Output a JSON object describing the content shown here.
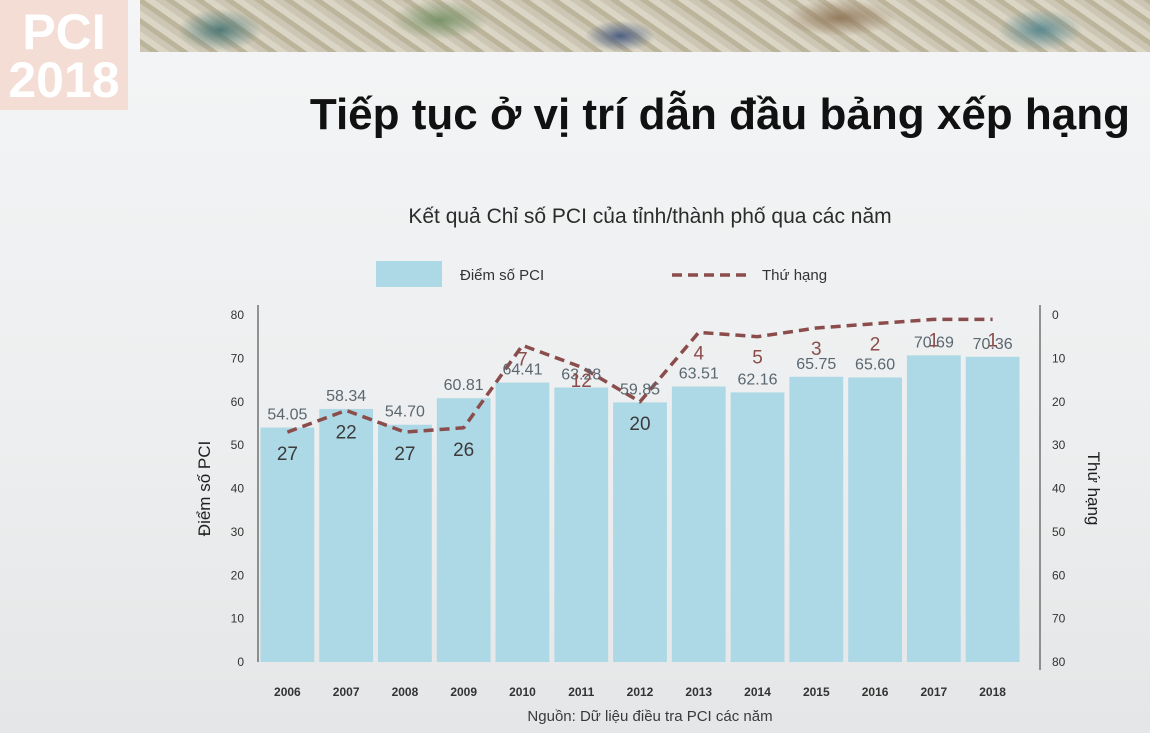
{
  "slide": {
    "badge_line1": "PCI",
    "badge_line2": "2018",
    "title": "Tiếp tục ở vị trí dẫn đầu bảng xếp hạng",
    "source": "Nguồn: Dữ liệu điều tra PCI các năm"
  },
  "colors": {
    "bar": "#add8e6",
    "rank_line": "#8b4c4c",
    "axis": "#333333"
  },
  "chart_data": {
    "type": "bar",
    "title": "Kết quả Chỉ số PCI của tỉnh/thành phố qua các năm",
    "categories": [
      "2006",
      "2007",
      "2008",
      "2009",
      "2010",
      "2011",
      "2012",
      "2013",
      "2014",
      "2015",
      "2016",
      "2017",
      "2018"
    ],
    "series": [
      {
        "name": "Điểm số PCI",
        "type": "bar",
        "axis": "left",
        "values": [
          54.05,
          58.34,
          54.7,
          60.81,
          64.41,
          63.28,
          59.85,
          63.51,
          62.16,
          65.75,
          65.6,
          70.69,
          70.36
        ],
        "labels": [
          "54.05",
          "58.34",
          "54.70",
          "60.81",
          "64.41",
          "63.28",
          "59.85",
          "63.51",
          "62.16",
          "65.75",
          "65.60",
          "70.69",
          "70.36"
        ]
      },
      {
        "name": "Thứ hạng",
        "type": "line",
        "style": "dashed",
        "axis": "right",
        "values": [
          27,
          22,
          27,
          26,
          7,
          12,
          20,
          4,
          5,
          3,
          2,
          1,
          1
        ],
        "labels": [
          "27",
          "22",
          "27",
          "26",
          "7",
          "12",
          "20",
          "4",
          "5",
          "3",
          "2",
          "1",
          "1"
        ]
      }
    ],
    "ylabel": "Điểm số PCI",
    "y2label": "Thứ hạng",
    "ylim": [
      0,
      80
    ],
    "y2lim": [
      0,
      80
    ],
    "y2_inverted": true,
    "yticks": [
      "0",
      "10",
      "20",
      "30",
      "40",
      "50",
      "60",
      "70",
      "80"
    ],
    "y2ticks": [
      "0",
      "10",
      "20",
      "30",
      "40",
      "50",
      "60",
      "70",
      "80"
    ],
    "legend_position": "top",
    "grid": false
  }
}
